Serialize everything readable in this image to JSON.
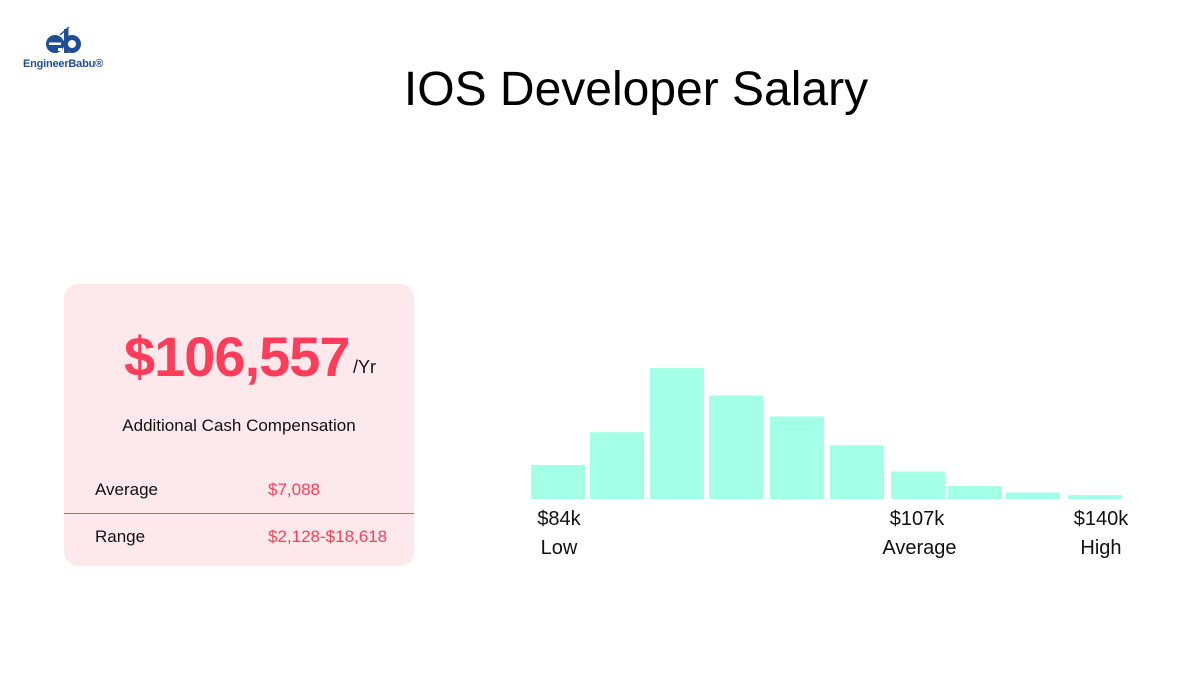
{
  "brand": {
    "name": "EngineerBabu®",
    "logo_color": "#1f4e96"
  },
  "title": "IOS Developer Salary",
  "card": {
    "salary": "$106,557",
    "per": "/Yr",
    "subtitle": "Additional Cash Compensation",
    "rows": [
      {
        "label": "Average",
        "value": "$7,088"
      },
      {
        "label": "Range",
        "value": "$2,128-$18,618"
      }
    ],
    "accent": "#ff3d5a",
    "background": "#fde9ec"
  },
  "chart_data": {
    "type": "bar",
    "title": "",
    "values": [
      26,
      51,
      100,
      79,
      63,
      41,
      21,
      10,
      5,
      3
    ],
    "bar_color": "#a3ffe6",
    "y_axis_shown": false,
    "grid": false,
    "x_labels": [
      {
        "value": "$84k",
        "caption": "Low"
      },
      {
        "value": "$107k",
        "caption": "Average"
      },
      {
        "value": "$140k",
        "caption": "High"
      }
    ]
  }
}
